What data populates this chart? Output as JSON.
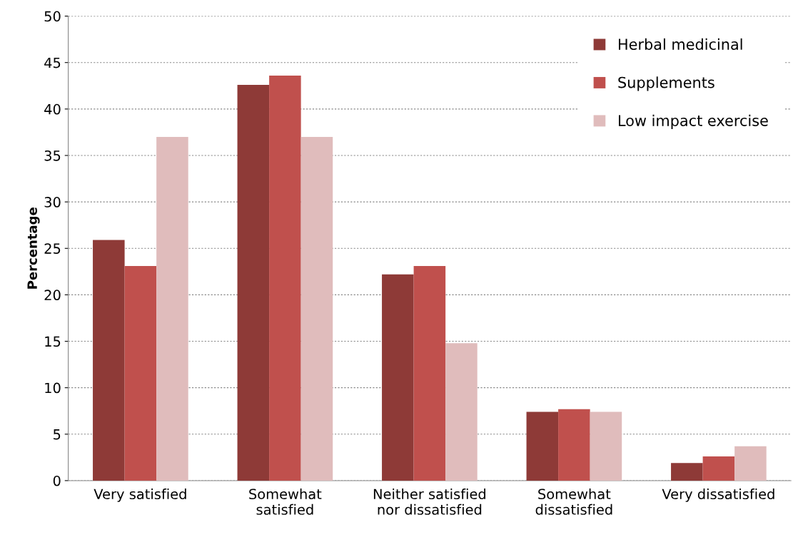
{
  "chart_data": {
    "type": "bar",
    "ylabel": "Percentage",
    "categories": [
      "Very satisfied",
      "Somewhat\nsatisfied",
      "Neither satisfied\nnor dissatisfied",
      "Somewhat\ndissatisfied",
      "Very dissatisfied"
    ],
    "series": [
      {
        "name": "Herbal medicinal",
        "color": "#8e3a37",
        "values": [
          25.9,
          42.6,
          22.2,
          7.4,
          1.9
        ]
      },
      {
        "name": "Supplements",
        "color": "#c0504d",
        "values": [
          23.1,
          43.6,
          23.1,
          7.7,
          2.6
        ]
      },
      {
        "name": "Low impact exercise",
        "color": "#e0bcbc",
        "values": [
          37.0,
          37.0,
          14.8,
          7.4,
          3.7
        ]
      }
    ],
    "ylim": [
      0,
      50
    ],
    "yticks": [
      0,
      5,
      10,
      15,
      20,
      25,
      30,
      35,
      40,
      45,
      50
    ],
    "grid": "y",
    "legend": "top right"
  }
}
